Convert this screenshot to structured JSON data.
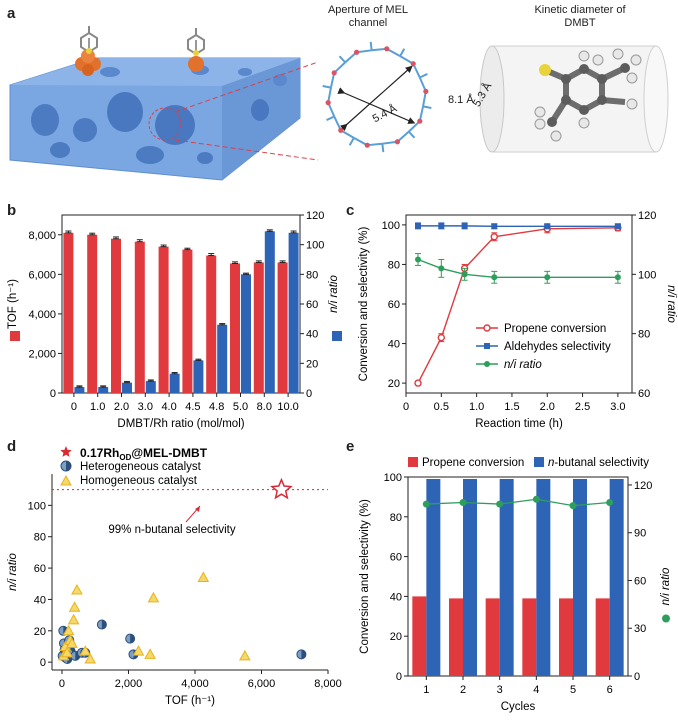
{
  "panel_a": {
    "label": "a",
    "aperture_title": "Aperture of MEL channel",
    "kinetic_title": "Kinetic diameter of DMBT",
    "dim_1": "5.3 Å",
    "dim_2": "5.4 Å",
    "diameter": "8.1 Å",
    "colors": {
      "framework": "#6f9fdf",
      "rh": "#e2722b",
      "ring_node": "#d85565",
      "ring_bond": "#5a9ed6"
    }
  },
  "panel_labels": {
    "b": "b",
    "c": "c",
    "d": "d",
    "e": "e"
  },
  "chart_data": [
    {
      "panel": "b",
      "type": "bar",
      "categories": [
        "0",
        "1.0",
        "2.0",
        "3.0",
        "4.0",
        "4.5",
        "4.8",
        "5.0",
        "8.0",
        "10.0"
      ],
      "xlabel": "DMBT/Rh ratio (mol/mol)",
      "ylabel": "TOF (h⁻¹)",
      "ylabel_right": "n/i ratio",
      "ylim": [
        0,
        9000
      ],
      "ylim_right": [
        0,
        120
      ],
      "yticks": [
        "0",
        "2,000",
        "4,000",
        "6,000",
        "8,000"
      ],
      "yticks_right": [
        "0",
        "20",
        "40",
        "60",
        "80",
        "100",
        "120"
      ],
      "series": [
        {
          "name": "TOF",
          "axis": "left",
          "color": "#e0393e",
          "values": [
            8100,
            8000,
            7800,
            7650,
            7400,
            7250,
            6950,
            6550,
            6600,
            6600
          ],
          "errors": [
            90,
            80,
            90,
            100,
            80,
            70,
            100,
            80,
            80,
            80
          ]
        },
        {
          "name": "n/i",
          "axis": "right",
          "color": "#2e64b6",
          "values": [
            4,
            4,
            7,
            8,
            13,
            22,
            46,
            80,
            109,
            108
          ],
          "errors": [
            0.8,
            0.8,
            0.8,
            0.8,
            0.8,
            0.8,
            0.8,
            0.8,
            1,
            1.2
          ]
        }
      ]
    },
    {
      "panel": "c",
      "type": "line",
      "xlabel": "Reaction time (h)",
      "ylabel": "Conversion and selectivity (%)",
      "ylabel_right": "n/i ratio",
      "xlim": [
        0,
        3.2
      ],
      "ylim": [
        15,
        105
      ],
      "ylim_right": [
        60,
        120
      ],
      "xticks": [
        "0",
        "0.5",
        "1.0",
        "1.5",
        "2.0",
        "2.5",
        "3.0"
      ],
      "yticks": [
        "20",
        "40",
        "60",
        "80",
        "100"
      ],
      "yticks_right": [
        "60",
        "80",
        "100",
        "120"
      ],
      "series": [
        {
          "name": "Propene conversion",
          "axis": "left",
          "color": "#e0393e",
          "marker": "open-circle",
          "x": [
            0.17,
            0.5,
            0.83,
            1.25,
            2.0,
            3.0
          ],
          "y": [
            20,
            43,
            78,
            94,
            98,
            98.5
          ],
          "errors": [
            1,
            2,
            2,
            2,
            2,
            1.5
          ]
        },
        {
          "name": "Aldehydes selectivity",
          "axis": "left",
          "color": "#2e64b6",
          "marker": "square",
          "x": [
            0.17,
            0.5,
            0.83,
            1.25,
            2.0,
            3.0
          ],
          "y": [
            99.5,
            99.5,
            99.5,
            99.3,
            99.3,
            99.3
          ],
          "errors": [
            1.5,
            1.5,
            1.5,
            1.2,
            1.2,
            1.2
          ]
        },
        {
          "name": "n/i ratio",
          "axis": "right",
          "color": "#2e9e5c",
          "marker": "circle",
          "x": [
            0.17,
            0.5,
            0.83,
            1.25,
            2.0,
            3.0
          ],
          "y": [
            105,
            102,
            100,
            99,
            99,
            99
          ],
          "errors": [
            2,
            3,
            2,
            2,
            2,
            2
          ]
        }
      ]
    },
    {
      "panel": "d",
      "type": "scatter",
      "xlabel": "TOF (h⁻¹)",
      "ylabel": "n/i ratio",
      "xlim": [
        -300,
        8000
      ],
      "ylim": [
        -5,
        120
      ],
      "xticks": [
        "0",
        "2,000",
        "4,000",
        "6,000",
        "8,000"
      ],
      "yticks": [
        "0",
        "20",
        "40",
        "60",
        "80",
        "100"
      ],
      "reference_line": {
        "y": 110,
        "label": "99% n-butanal selectivity"
      },
      "series": [
        {
          "name": "0.17Rh_OD@MEL-DMBT",
          "name_main": "0.17Rh",
          "name_sub": "OD",
          "name_rest": "@MEL-DMBT",
          "marker": "star",
          "color": "#d92b36",
          "points": [
            [
              6600,
              110
            ]
          ]
        },
        {
          "name": "Heterogeneous catalyst",
          "marker": "half-circle",
          "color": "#2d4f7a",
          "points": [
            [
              20,
              4
            ],
            [
              40,
              20
            ],
            [
              60,
              12
            ],
            [
              80,
              8
            ],
            [
              100,
              3
            ],
            [
              130,
              6
            ],
            [
              160,
              2
            ],
            [
              180,
              10
            ],
            [
              220,
              14
            ],
            [
              260,
              7
            ],
            [
              300,
              5
            ],
            [
              400,
              4
            ],
            [
              600,
              6
            ],
            [
              700,
              6
            ],
            [
              1200,
              24
            ],
            [
              2050,
              15
            ],
            [
              2150,
              5
            ],
            [
              7200,
              5
            ]
          ]
        },
        {
          "name": "Homogeneous catalyst",
          "marker": "triangle",
          "color": "#e8b21e",
          "points": [
            [
              50,
              4
            ],
            [
              100,
              10
            ],
            [
              150,
              6
            ],
            [
              200,
              20
            ],
            [
              250,
              14
            ],
            [
              300,
              12
            ],
            [
              350,
              27
            ],
            [
              380,
              35
            ],
            [
              450,
              46
            ],
            [
              700,
              7
            ],
            [
              850,
              2
            ],
            [
              2300,
              7
            ],
            [
              2650,
              5
            ],
            [
              2750,
              41
            ],
            [
              4250,
              54
            ],
            [
              5500,
              4
            ]
          ]
        }
      ]
    },
    {
      "panel": "e",
      "type": "bar",
      "categories": [
        "1",
        "2",
        "3",
        "4",
        "5",
        "6"
      ],
      "xlabel": "Cycles",
      "ylabel": "Conversion and selectivity (%)",
      "ylabel_right": "n/i ratio",
      "ylim": [
        0,
        100
      ],
      "ylim_right": [
        0,
        125
      ],
      "yticks": [
        "0",
        "20",
        "40",
        "60",
        "80",
        "100"
      ],
      "yticks_right": [
        "0",
        "30",
        "60",
        "90",
        "120"
      ],
      "series": [
        {
          "name": "Propene conversion",
          "axis": "left",
          "color": "#e0393e",
          "values": [
            40,
            39,
            39,
            39,
            39,
            39
          ]
        },
        {
          "name": "n-butanal selectivity",
          "name_italic": "n",
          "name_rest": "-butanal selectivity",
          "axis": "left",
          "color": "#2e64b6",
          "values": [
            99,
            99,
            99,
            99,
            99,
            99
          ]
        },
        {
          "name": "n/i ratio",
          "axis": "right",
          "color": "#2e9e5c",
          "values": [
            108,
            109,
            108,
            111,
            107,
            109
          ]
        }
      ]
    }
  ]
}
